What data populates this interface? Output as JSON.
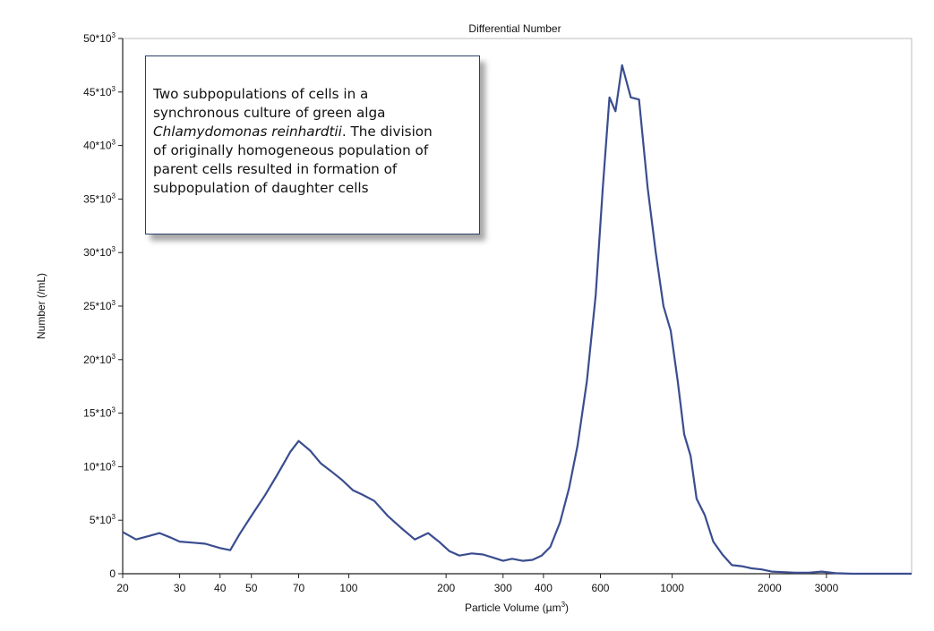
{
  "chart_data": {
    "type": "line",
    "title": "Differential Number",
    "xlabel": "Particle Volume (µm",
    "xlabel_sup": "3",
    "xlabel_close": ")",
    "ylabel": "Number (/mL)",
    "xscale": "log",
    "xlim": [
      20,
      5500
    ],
    "ylim": [
      0,
      50000
    ],
    "x_ticks": [
      {
        "value": 20,
        "label": "20"
      },
      {
        "value": 30,
        "label": "30"
      },
      {
        "value": 40,
        "label": "40"
      },
      {
        "value": 50,
        "label": "50"
      },
      {
        "value": 70,
        "label": "70"
      },
      {
        "value": 100,
        "label": "100"
      },
      {
        "value": 200,
        "label": "200"
      },
      {
        "value": 300,
        "label": "300"
      },
      {
        "value": 400,
        "label": "400"
      },
      {
        "value": 600,
        "label": "600"
      },
      {
        "value": 1000,
        "label": "1000"
      },
      {
        "value": 2000,
        "label": "2000"
      },
      {
        "value": 3000,
        "label": "3000"
      }
    ],
    "y_ticks": [
      {
        "value": 0,
        "label": "0",
        "sup": ""
      },
      {
        "value": 5000,
        "label": "5*10",
        "sup": "3"
      },
      {
        "value": 10000,
        "label": "10*10",
        "sup": "3"
      },
      {
        "value": 15000,
        "label": "15*10",
        "sup": "3"
      },
      {
        "value": 20000,
        "label": "20*10",
        "sup": "3"
      },
      {
        "value": 25000,
        "label": "25*10",
        "sup": "3"
      },
      {
        "value": 30000,
        "label": "30*10",
        "sup": "3"
      },
      {
        "value": 35000,
        "label": "35*10",
        "sup": "3"
      },
      {
        "value": 40000,
        "label": "40*10",
        "sup": "3"
      },
      {
        "value": 45000,
        "label": "45*10",
        "sup": "3"
      },
      {
        "value": 50000,
        "label": "50*10",
        "sup": "3"
      }
    ],
    "series": [
      {
        "name": "Differential Number",
        "color": "#3a4d8f",
        "x": [
          20,
          22,
          24,
          26,
          28,
          30,
          33,
          36,
          40,
          43,
          46,
          50,
          55,
          60,
          66,
          70,
          76,
          82,
          88,
          95,
          103,
          110,
          120,
          132,
          145,
          160,
          176,
          190,
          205,
          220,
          240,
          260,
          280,
          300,
          320,
          345,
          370,
          395,
          420,
          450,
          480,
          510,
          545,
          580,
          610,
          640,
          668,
          700,
          745,
          790,
          840,
          890,
          940,
          990,
          1040,
          1090,
          1140,
          1190,
          1260,
          1340,
          1430,
          1530,
          1640,
          1760,
          1890,
          2030,
          2200,
          2400,
          2650,
          2900,
          3200,
          3600,
          4000,
          4500,
          5000,
          5500
        ],
        "values": [
          3900,
          3200,
          3500,
          3800,
          3400,
          3000,
          2900,
          2800,
          2400,
          2200,
          3700,
          5400,
          7300,
          9200,
          11400,
          12400,
          11500,
          10300,
          9600,
          8800,
          7800,
          7400,
          6800,
          5400,
          4300,
          3200,
          3800,
          3000,
          2100,
          1700,
          1900,
          1800,
          1500,
          1200,
          1400,
          1200,
          1300,
          1700,
          2500,
          4800,
          8000,
          12000,
          18000,
          26000,
          36000,
          44500,
          43200,
          47500,
          44500,
          44300,
          36000,
          30000,
          25000,
          22700,
          18000,
          13000,
          11000,
          7000,
          5500,
          3000,
          1800,
          800,
          700,
          500,
          400,
          200,
          150,
          100,
          100,
          200,
          50,
          0,
          0,
          0,
          0,
          0
        ]
      }
    ]
  },
  "annotation": {
    "line1": "Two subpopulations of cells in a",
    "line2": "synchronous culture of green alga",
    "species": "Chlamydomonas reinhardtii",
    "line3_rest": ". The division",
    "line4": "of originally homogeneous population of",
    "line5": "parent cells resulted in formation of",
    "line6": "subpopulation of daughter cells"
  }
}
